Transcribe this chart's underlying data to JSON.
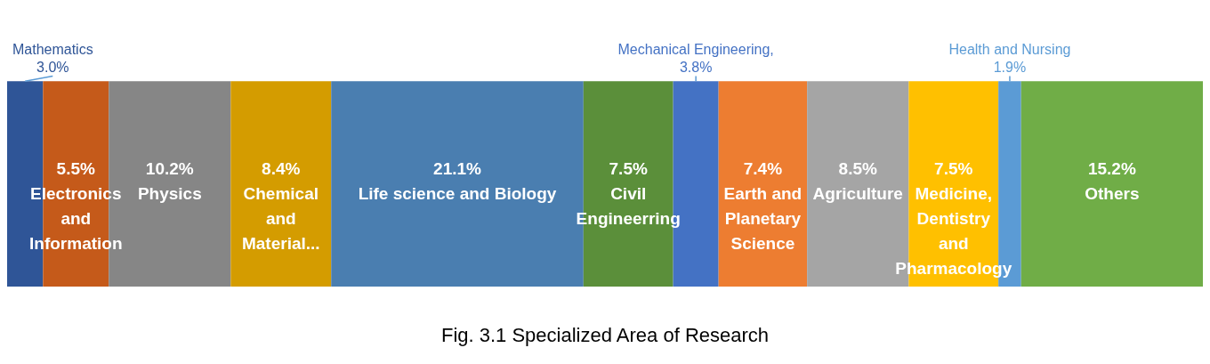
{
  "chart_data": {
    "type": "bar",
    "orientation": "horizontal",
    "stacked": true,
    "title": "Fig. 3.1 Specialized Area of Research",
    "categories": [
      null
    ],
    "data_labels": true,
    "series": [
      {
        "name": "Mathematics",
        "color": "#2f5597",
        "values": [
          3.0
        ],
        "value_labels": [
          "3.0%"
        ]
      },
      {
        "name": "Electronics and Information",
        "color": "#c55a1a",
        "values": [
          5.5
        ],
        "value_labels": [
          "5.5%"
        ]
      },
      {
        "name": "Physics",
        "color": "#868686",
        "values": [
          10.2
        ],
        "value_labels": [
          "10.2%"
        ]
      },
      {
        "name": "Chemical and Material...",
        "color": "#d49c00",
        "values": [
          8.4
        ],
        "value_labels": [
          "8.4%"
        ]
      },
      {
        "name": "Life science and Biology",
        "color": "#4a7eb0",
        "values": [
          21.1
        ],
        "value_labels": [
          "21.1%"
        ]
      },
      {
        "name": "Civil Engineerring",
        "color": "#5b8f3a",
        "values": [
          7.5
        ],
        "value_labels": [
          "7.5%"
        ]
      },
      {
        "name": "Mechanical Engineering,",
        "color": "#4472c4",
        "values": [
          3.8
        ],
        "value_labels": [
          "3.8%"
        ]
      },
      {
        "name": "Earth and Planetary Science",
        "color": "#ed7d31",
        "values": [
          7.4
        ],
        "value_labels": [
          "7.4%"
        ]
      },
      {
        "name": "Agriculture",
        "color": "#a5a5a5",
        "values": [
          8.5
        ],
        "value_labels": [
          "8.5%"
        ]
      },
      {
        "name": "Medicine, Dentistry and Pharmacology",
        "color": "#ffc000",
        "values": [
          7.5
        ],
        "value_labels": [
          "7.5%"
        ]
      },
      {
        "name": "Health and Nursing",
        "color": "#5b9bd5",
        "values": [
          1.9
        ],
        "value_labels": [
          "1.9%"
        ]
      },
      {
        "name": "Others",
        "color": "#70ad47",
        "values": [
          15.2
        ],
        "value_labels": [
          "15.2%"
        ]
      }
    ]
  }
}
